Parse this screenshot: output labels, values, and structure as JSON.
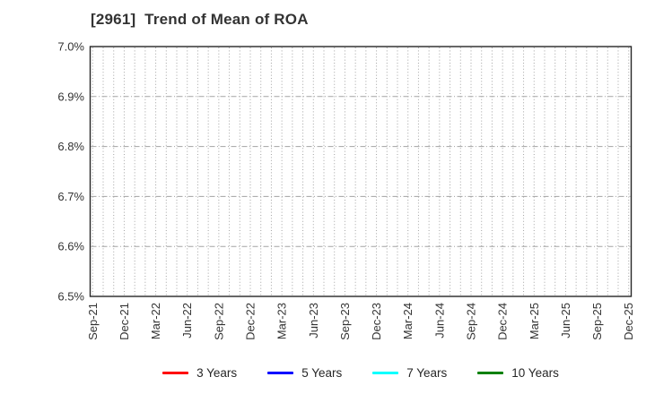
{
  "chart_data": {
    "type": "line",
    "title": "[2961]  Trend of Mean of ROA",
    "xlabel": "",
    "ylabel": "",
    "ylim": [
      6.5,
      7.0
    ],
    "y_unit": "%",
    "y_tick_labels": [
      "7.0%",
      "6.9%",
      "6.8%",
      "6.7%",
      "6.6%",
      "6.5%"
    ],
    "x_tick_labels": [
      "Sep-21",
      "Dec-21",
      "Mar-22",
      "Jun-22",
      "Sep-22",
      "Dec-22",
      "Mar-23",
      "Jun-23",
      "Sep-23",
      "Dec-23",
      "Mar-24",
      "Jun-24",
      "Sep-24",
      "Dec-24",
      "Mar-25",
      "Jun-25",
      "Sep-25",
      "Dec-25"
    ],
    "x_minor_gridlines": "monthly",
    "n_vertical_gridlines": 52,
    "months_per_label": 3,
    "grid": true,
    "legend_position": "bottom",
    "series": [
      {
        "name": "3 Years",
        "color": "#ff0000",
        "values": []
      },
      {
        "name": "5 Years",
        "color": "#0000ff",
        "values": []
      },
      {
        "name": "7 Years",
        "color": "#00ffff",
        "values": []
      },
      {
        "name": "10 Years",
        "color": "#008000",
        "values": []
      }
    ],
    "colors": {
      "spine": "#262626",
      "gridline": "#a3a3a3",
      "tick_text": "#333333",
      "title_text": "#333333"
    }
  }
}
